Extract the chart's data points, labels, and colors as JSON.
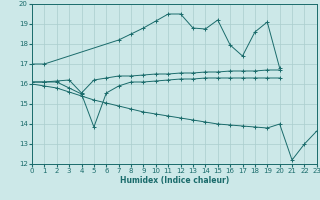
{
  "background_color": "#cce8e8",
  "grid_color": "#aacece",
  "line_color": "#1a6b6b",
  "xlabel": "Humidex (Indice chaleur)",
  "xlim": [
    0,
    23
  ],
  "ylim": [
    12,
    20
  ],
  "xticks": [
    0,
    1,
    2,
    3,
    4,
    5,
    6,
    7,
    8,
    9,
    10,
    11,
    12,
    13,
    14,
    15,
    16,
    17,
    18,
    19,
    20,
    21,
    22,
    23
  ],
  "yticks": [
    12,
    13,
    14,
    15,
    16,
    17,
    18,
    19,
    20
  ],
  "series": [
    {
      "x": [
        0,
        1,
        7,
        8,
        9,
        10,
        11,
        12,
        13,
        14,
        15,
        16,
        17,
        18,
        19,
        20
      ],
      "y": [
        17.0,
        17.0,
        18.2,
        18.5,
        18.8,
        19.15,
        19.5,
        19.5,
        18.8,
        18.75,
        19.2,
        17.95,
        17.4,
        18.6,
        19.1,
        16.8
      ]
    },
    {
      "x": [
        0,
        1,
        2,
        3,
        4,
        5,
        6,
        7,
        8,
        9,
        10,
        11,
        12,
        13,
        14,
        15,
        16,
        17,
        18,
        19,
        20
      ],
      "y": [
        16.1,
        16.1,
        16.15,
        16.2,
        15.55,
        16.2,
        16.3,
        16.4,
        16.4,
        16.45,
        16.5,
        16.5,
        16.55,
        16.55,
        16.6,
        16.6,
        16.65,
        16.65,
        16.65,
        16.7,
        16.7
      ]
    },
    {
      "x": [
        0,
        1,
        2,
        3,
        4,
        5,
        6,
        7,
        8,
        9,
        10,
        11,
        12,
        13,
        14,
        15,
        16,
        17,
        18,
        19,
        20
      ],
      "y": [
        16.1,
        16.1,
        16.1,
        15.8,
        15.5,
        13.85,
        15.55,
        15.9,
        16.1,
        16.1,
        16.15,
        16.2,
        16.25,
        16.25,
        16.3,
        16.3,
        16.3,
        16.3,
        16.3,
        16.3,
        16.3
      ]
    },
    {
      "x": [
        0,
        1,
        2,
        3,
        4,
        5,
        6,
        7,
        8,
        9,
        10,
        11,
        12,
        13,
        14,
        15,
        16,
        17,
        18,
        19,
        20,
        21,
        22,
        23
      ],
      "y": [
        16.0,
        15.9,
        15.8,
        15.6,
        15.4,
        15.2,
        15.05,
        14.9,
        14.75,
        14.6,
        14.5,
        14.4,
        14.3,
        14.2,
        14.1,
        14.0,
        13.95,
        13.9,
        13.85,
        13.8,
        14.0,
        12.2,
        13.0,
        13.65
      ]
    }
  ]
}
